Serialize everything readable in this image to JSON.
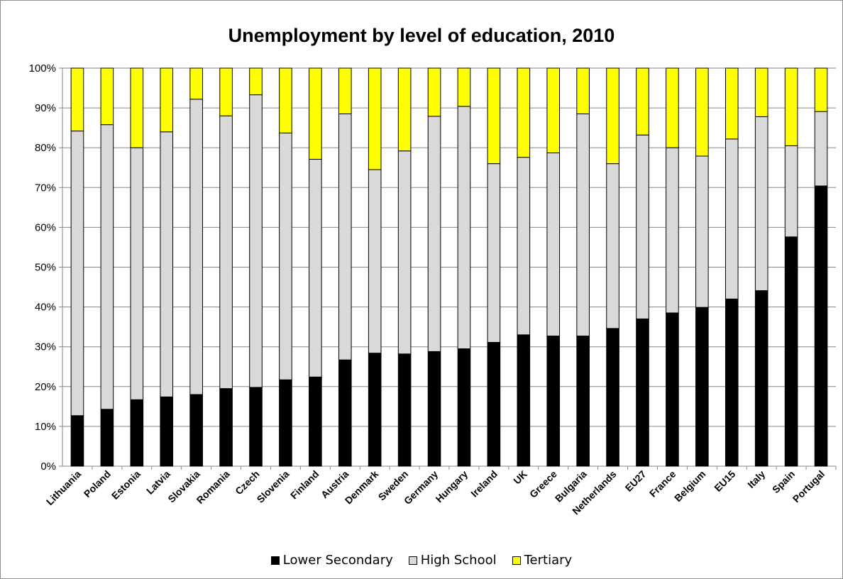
{
  "chart_data": {
    "type": "bar",
    "stacked": true,
    "title": "Unemployment by level of education, 2010",
    "xlabel": "",
    "ylabel": "",
    "ylim": [
      0,
      100
    ],
    "y_tick_labels": [
      "0%",
      "10%",
      "20%",
      "30%",
      "40%",
      "50%",
      "60%",
      "70%",
      "80%",
      "90%",
      "100%"
    ],
    "grid": true,
    "legend_position": "bottom",
    "categories": [
      "Lithuania",
      "Poland",
      "Estonia",
      "Latvia",
      "Slovakia",
      "Romania",
      "Czech",
      "Slovenia",
      "Finland",
      "Austria",
      "Denmark",
      "Sweden",
      "Germany",
      "Hungary",
      "Ireland",
      "UK",
      "Greece",
      "Bulgaria",
      "Netherlands",
      "EU27",
      "France",
      "Belgium",
      "EU15",
      "Italy",
      "Spain",
      "Portugal"
    ],
    "series": [
      {
        "name": "Lower Secondary",
        "color": "#000000",
        "values": [
          12.7,
          14.3,
          16.7,
          17.4,
          18.0,
          19.5,
          19.8,
          21.7,
          22.4,
          26.7,
          28.4,
          28.2,
          28.8,
          29.5,
          31.1,
          33.0,
          32.7,
          32.7,
          34.6,
          37.0,
          38.5,
          39.9,
          42.0,
          44.1,
          57.6,
          70.4
        ]
      },
      {
        "name": "High School",
        "color": "#d9d9d9",
        "values": [
          71.5,
          71.5,
          63.3,
          66.6,
          74.2,
          68.5,
          73.5,
          62.0,
          54.7,
          61.8,
          46.1,
          51.0,
          59.1,
          60.9,
          44.9,
          44.6,
          46.0,
          55.8,
          41.4,
          46.2,
          41.5,
          38.0,
          40.2,
          43.7,
          22.9,
          18.7
        ]
      },
      {
        "name": "Tertiary",
        "color": "#ffff00",
        "values": [
          15.8,
          14.2,
          20.0,
          16.0,
          7.8,
          12.0,
          6.7,
          16.3,
          22.9,
          11.5,
          25.5,
          20.8,
          12.1,
          9.6,
          24.0,
          22.4,
          21.3,
          11.5,
          24.0,
          16.8,
          20.0,
          22.1,
          17.8,
          12.2,
          19.5,
          10.9
        ]
      }
    ]
  }
}
